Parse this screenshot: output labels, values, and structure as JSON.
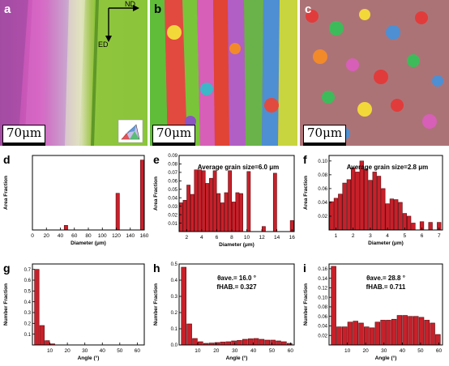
{
  "panels": {
    "a": {
      "label": "a",
      "scale": "70μm",
      "axis_nd": "ND",
      "axis_ed": "ED"
    },
    "b": {
      "label": "b",
      "scale": "70μm"
    },
    "c": {
      "label": "c",
      "scale": "70μm"
    }
  },
  "colors": {
    "bar_fill": "#c8202a",
    "bar_stroke": "#5a0a0e",
    "axis": "#000000"
  },
  "chart_data": [
    {
      "id": "d",
      "label": "d",
      "type": "bar",
      "xlabel": "Diameter (μm)",
      "ylabel": "Area Fraction",
      "xlim": [
        0,
        160
      ],
      "ylim": [
        0,
        0.65
      ],
      "xticks": [
        0,
        20,
        40,
        60,
        80,
        100,
        120,
        140,
        160
      ],
      "yticks": [],
      "bar_width": 5,
      "x": [
        48,
        122,
        157
      ],
      "values": [
        0.04,
        0.32,
        0.61
      ]
    },
    {
      "id": "e",
      "label": "e",
      "type": "bar",
      "xlabel": "Diameter (μm)",
      "ylabel": "Area Fraction",
      "annotation": "Average grain size=6.0 μm",
      "xlim": [
        1,
        16.3
      ],
      "ylim": [
        0,
        0.09
      ],
      "xticks": [
        2,
        4,
        6,
        8,
        10,
        12,
        14,
        16
      ],
      "yticks": [
        0.01,
        0.02,
        0.03,
        0.04,
        0.05,
        0.06,
        0.07,
        0.08,
        0.09
      ],
      "ytick_labels": [
        "0.01",
        "0.02",
        "0.03",
        "0.04",
        "0.05",
        "0.06",
        "0.07",
        "0.08",
        "0.09"
      ],
      "bar_width": 0.45,
      "x": [
        1.25,
        1.75,
        2.25,
        2.75,
        3.25,
        3.75,
        4.25,
        4.75,
        5.25,
        5.75,
        6.25,
        6.75,
        7.25,
        7.75,
        8.25,
        8.75,
        9.25,
        10.25,
        12.25,
        13.75,
        16.0
      ],
      "values": [
        0.034,
        0.037,
        0.055,
        0.044,
        0.073,
        0.073,
        0.072,
        0.057,
        0.063,
        0.072,
        0.045,
        0.034,
        0.046,
        0.072,
        0.035,
        0.046,
        0.045,
        0.071,
        0.006,
        0.069,
        0.013
      ]
    },
    {
      "id": "f",
      "label": "f",
      "type": "bar",
      "xlabel": "Diameter (μm)",
      "ylabel": "Area Fraction",
      "annotation": "Average grain size=2.8 μm",
      "xlim": [
        0.6,
        7.2
      ],
      "ylim": [
        0,
        0.108
      ],
      "xticks": [
        1,
        2,
        3,
        4,
        5,
        6,
        7
      ],
      "yticks": [
        0.02,
        0.04,
        0.06,
        0.08,
        0.1
      ],
      "ytick_labels": [
        "0.02",
        "0.04",
        "0.06",
        "0.08",
        "0.10"
      ],
      "bar_width": 0.22,
      "x": [
        0.75,
        1.0,
        1.25,
        1.5,
        1.75,
        2.0,
        2.25,
        2.5,
        2.75,
        3.0,
        3.25,
        3.5,
        3.75,
        4.0,
        4.25,
        4.5,
        4.75,
        5.0,
        5.25,
        5.5,
        6.0,
        6.5,
        7.0
      ],
      "values": [
        0.041,
        0.046,
        0.052,
        0.068,
        0.073,
        0.09,
        0.084,
        0.1,
        0.088,
        0.072,
        0.084,
        0.078,
        0.06,
        0.038,
        0.045,
        0.044,
        0.04,
        0.024,
        0.02,
        0.01,
        0.012,
        0.011,
        0.011
      ]
    },
    {
      "id": "g",
      "label": "g",
      "type": "bar",
      "xlabel": "Angle (°)",
      "ylabel": "Number Fraction",
      "xlim": [
        0,
        64
      ],
      "ylim": [
        0,
        0.75
      ],
      "xticks": [
        10,
        20,
        30,
        40,
        50,
        60
      ],
      "yticks": [
        0.1,
        0.2,
        0.3,
        0.4,
        0.5,
        0.6,
        0.7
      ],
      "ytick_labels": [
        "0.1",
        "0.2",
        "0.3",
        "0.4",
        "0.5",
        "0.6",
        "0.7"
      ],
      "bar_width": 2.6,
      "x": [
        2.5,
        5.5,
        8.5,
        11.5
      ],
      "values": [
        0.7,
        0.18,
        0.04,
        0.01
      ]
    },
    {
      "id": "h",
      "label": "h",
      "type": "bar",
      "xlabel": "Angle (°)",
      "ylabel": "Number Fraction",
      "annotation_lines": [
        "θave.= 16.0 °",
        "fHAB.= 0.327"
      ],
      "xlim": [
        0,
        62
      ],
      "ylim": [
        0,
        0.5
      ],
      "xticks": [
        10,
        20,
        30,
        40,
        50,
        60
      ],
      "yticks": [
        0.0,
        0.1,
        0.2,
        0.3,
        0.4,
        0.5
      ],
      "ytick_labels": [
        "0.0",
        "0.1",
        "0.2",
        "0.3",
        "0.4",
        "0.5"
      ],
      "bar_width": 2.6,
      "x": [
        2.5,
        5.5,
        8.5,
        11.5,
        14.5,
        17.5,
        20.5,
        23.5,
        26.5,
        29.5,
        32.5,
        35.5,
        38.5,
        41.5,
        44.5,
        47.5,
        50.5,
        53.5,
        56.5,
        59.5
      ],
      "values": [
        0.48,
        0.13,
        0.04,
        0.02,
        0.01,
        0.012,
        0.015,
        0.018,
        0.02,
        0.025,
        0.028,
        0.035,
        0.038,
        0.04,
        0.035,
        0.03,
        0.03,
        0.025,
        0.02,
        0.01
      ]
    },
    {
      "id": "i",
      "label": "i",
      "type": "bar",
      "xlabel": "Angle (°)",
      "ylabel": "Number Fraction",
      "annotation_lines": [
        "θave.= 28.8 °",
        "fHAB.= 0.711"
      ],
      "xlim": [
        0,
        62
      ],
      "ylim": [
        0,
        0.17
      ],
      "xticks": [
        10,
        20,
        30,
        40,
        50,
        60
      ],
      "yticks": [
        0.02,
        0.04,
        0.06,
        0.08,
        0.1,
        0.12,
        0.14,
        0.16
      ],
      "ytick_labels": [
        "0.02",
        "0.04",
        "0.06",
        "0.08",
        "0.10",
        "0.12",
        "0.14",
        "0.16"
      ],
      "bar_width": 2.6,
      "x": [
        2.5,
        5.5,
        8.5,
        11.5,
        14.5,
        17.5,
        20.5,
        23.5,
        26.5,
        29.5,
        32.5,
        35.5,
        38.5,
        41.5,
        44.5,
        47.5,
        50.5,
        53.5,
        56.5,
        59.5
      ],
      "values": [
        0.165,
        0.038,
        0.038,
        0.048,
        0.05,
        0.046,
        0.038,
        0.036,
        0.048,
        0.052,
        0.052,
        0.054,
        0.062,
        0.062,
        0.06,
        0.06,
        0.058,
        0.052,
        0.046,
        0.022
      ]
    }
  ]
}
